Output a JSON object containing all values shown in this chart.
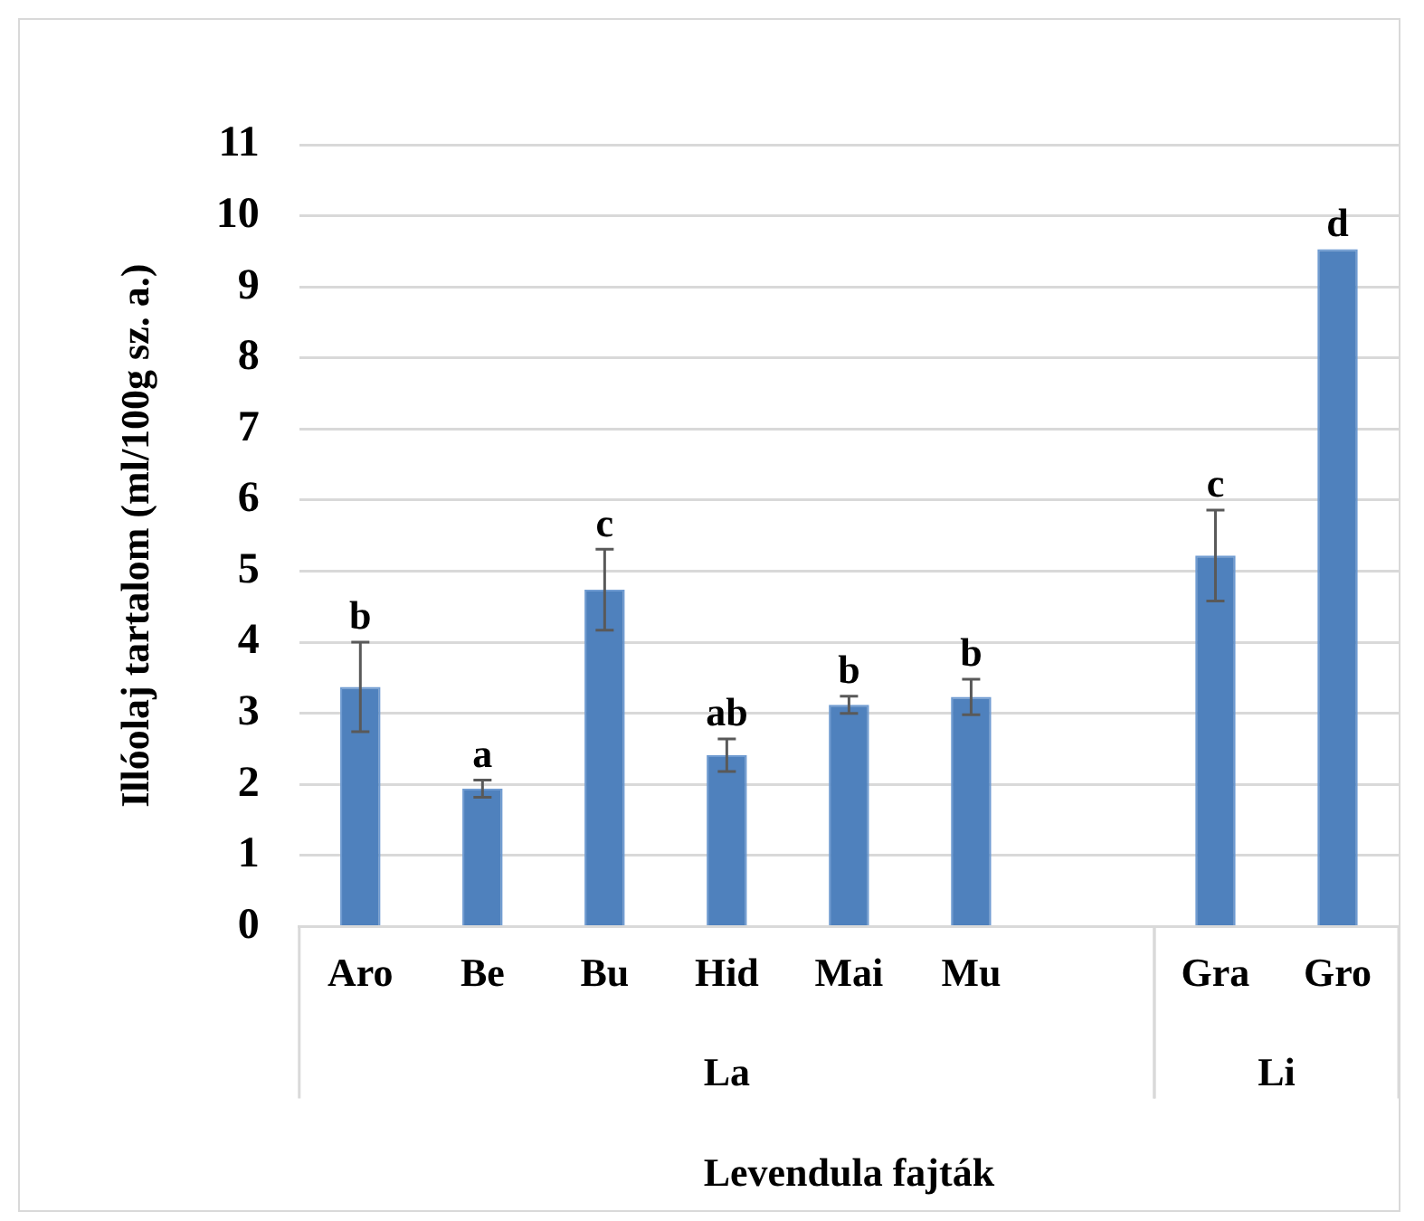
{
  "chart_data": {
    "type": "bar",
    "xlabel": "Levendula fajták",
    "ylabel": "Illóolaj tartalom (ml/100g sz. a.)",
    "categories": [
      "Aro",
      "Be",
      "Bu",
      "Hid",
      "Mai",
      "Mu",
      null,
      "Gra",
      "Gro"
    ],
    "values": [
      3.37,
      1.94,
      4.74,
      2.41,
      3.12,
      3.23,
      null,
      5.22,
      9.53
    ],
    "errors": [
      0.63,
      0.12,
      0.57,
      0.23,
      0.12,
      0.25,
      null,
      0.64,
      null
    ],
    "color": "#4f81bd",
    "ylim": [
      0,
      11
    ],
    "yticks": [
      0,
      1,
      2,
      3,
      4,
      5,
      6,
      7,
      8,
      9,
      10,
      11
    ],
    "grid": "y",
    "legend": false,
    "annotations": [
      {
        "text": "b",
        "x": "Aro",
        "y": 4.0
      },
      {
        "text": "a",
        "x": "Be",
        "y": 2.06
      },
      {
        "text": "c",
        "x": "Bu",
        "y": 5.31
      },
      {
        "text": "ab",
        "x": "Hid",
        "y": 2.64
      },
      {
        "text": "b",
        "x": "Mai",
        "y": 3.24
      },
      {
        "text": "b",
        "x": "Mu",
        "y": 3.48
      },
      {
        "text": "c",
        "x": "Gra",
        "y": 5.86
      },
      {
        "text": "d",
        "x": "Gro",
        "y": 9.53
      },
      "La",
      "Li"
    ]
  }
}
